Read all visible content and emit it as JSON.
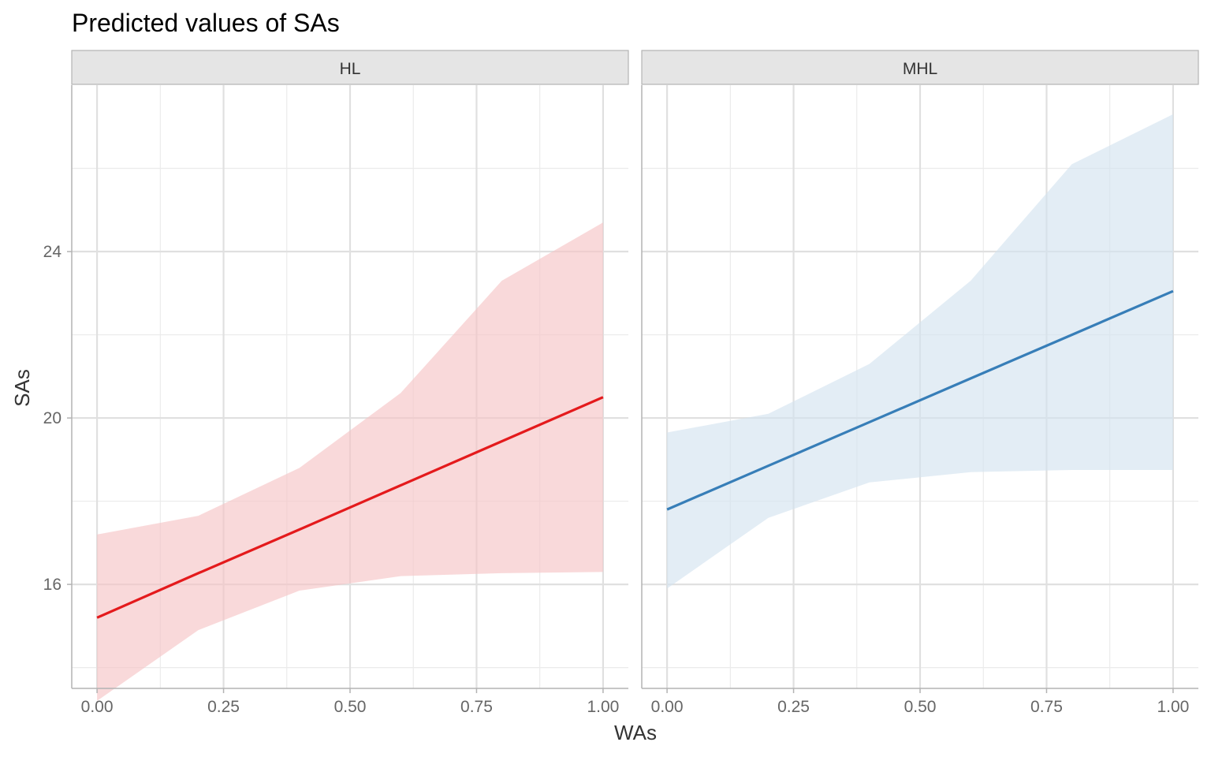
{
  "chart_data": {
    "type": "line",
    "title": "Predicted values of SAs",
    "xlabel": "WAs",
    "ylabel": "SAs",
    "xlim": [
      -0.05,
      1.05
    ],
    "ylim": [
      13.5,
      28
    ],
    "x_ticks": [
      "0.00",
      "0.25",
      "0.50",
      "0.75",
      "1.00"
    ],
    "x_tick_values": [
      0,
      0.25,
      0.5,
      0.75,
      1
    ],
    "y_ticks": [
      "16",
      "20",
      "24"
    ],
    "y_tick_values": [
      16,
      20,
      24
    ],
    "y_minor_values": [
      14,
      18,
      22,
      26
    ],
    "x_minor_values": [
      0.125,
      0.375,
      0.625,
      0.875
    ],
    "grid": true,
    "legend": "none",
    "facets": [
      {
        "label": "HL",
        "color": "#e41a1c",
        "ribbon_color": "#f6c5c6",
        "x": [
          0,
          0.2,
          0.4,
          0.6,
          0.8,
          1.0
        ],
        "y": [
          15.2,
          16.27,
          17.32,
          18.38,
          19.44,
          20.5
        ],
        "lower": [
          13.2,
          14.9,
          15.85,
          16.2,
          16.27,
          16.3
        ],
        "upper": [
          17.2,
          17.65,
          18.8,
          20.6,
          23.3,
          24.7
        ]
      },
      {
        "label": "MHL",
        "color": "#377eb8",
        "ribbon_color": "#d4e3f0",
        "x": [
          0,
          0.2,
          0.4,
          0.6,
          0.8,
          1.0
        ],
        "y": [
          17.8,
          18.85,
          19.9,
          20.95,
          22.0,
          23.05
        ],
        "lower": [
          15.9,
          17.6,
          18.45,
          18.7,
          18.75,
          18.75
        ],
        "upper": [
          19.65,
          20.1,
          21.3,
          23.3,
          26.1,
          27.3
        ]
      }
    ]
  }
}
